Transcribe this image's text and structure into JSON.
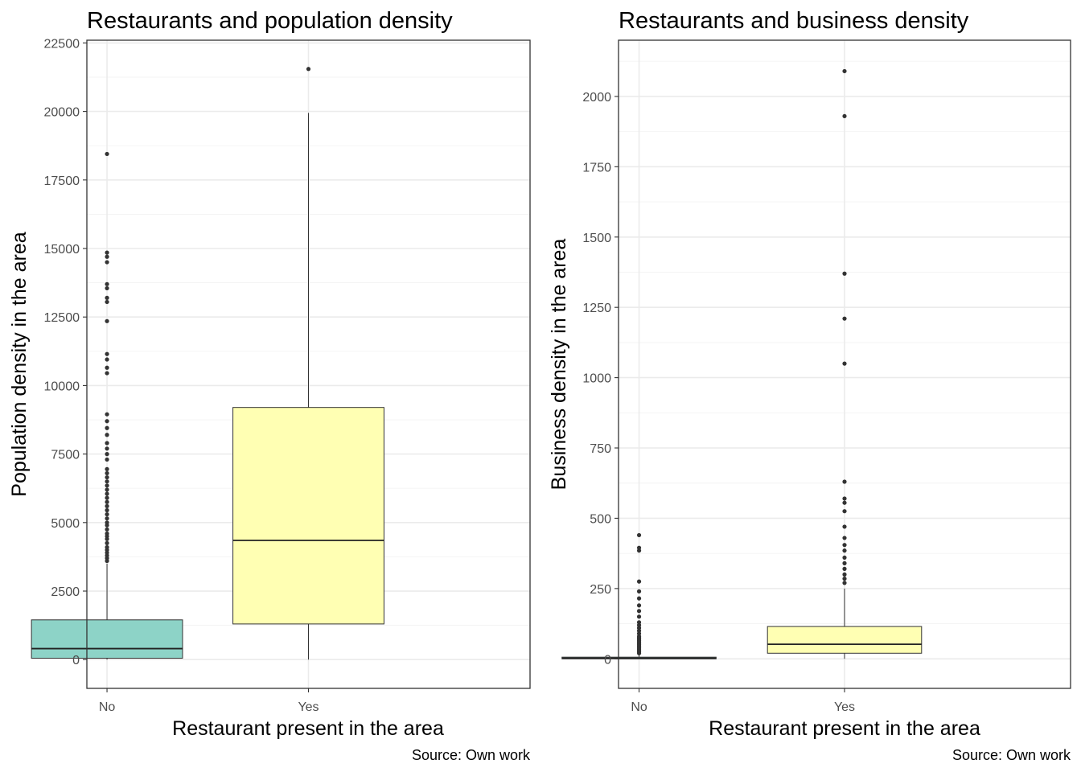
{
  "chart_data": [
    {
      "type": "box",
      "title": "Restaurants and population density",
      "xlabel": "Restaurant present in the area",
      "ylabel": "Population density in the area",
      "caption": "Source: Own work",
      "categories": [
        "No",
        "Yes"
      ],
      "ylim": [
        -1050,
        22600
      ],
      "yticks": [
        0,
        2500,
        5000,
        7500,
        10000,
        12500,
        15000,
        17500,
        20000,
        22500
      ],
      "ytick_labels": [
        "0",
        "2500",
        "5000",
        "7500",
        "10000",
        "12500",
        "15000",
        "17500",
        "20000",
        "22500"
      ],
      "boxes": [
        {
          "category": "No",
          "fill": "#8dd3c7",
          "whisker_low": 0,
          "q1": 50,
          "median": 400,
          "q3": 1450,
          "whisker_high": 3500,
          "outliers": [
            3600,
            3700,
            3800,
            3900,
            4000,
            4100,
            4250,
            4400,
            4500,
            4600,
            4750,
            4900,
            5000,
            5150,
            5300,
            5450,
            5600,
            5750,
            5900,
            6050,
            6200,
            6350,
            6500,
            6650,
            6800,
            6950,
            7300,
            7500,
            7700,
            7900,
            8200,
            8450,
            8700,
            8950,
            10450,
            10650,
            10950,
            11150,
            12350,
            13050,
            13200,
            13550,
            13700,
            14500,
            14700,
            14850,
            18450
          ]
        },
        {
          "category": "Yes",
          "fill": "#ffffb3",
          "whisker_low": 0,
          "q1": 1300,
          "median": 4350,
          "q3": 9200,
          "whisker_high": 19950,
          "outliers": [
            21550
          ]
        }
      ]
    },
    {
      "type": "box",
      "title": "Restaurants and business density",
      "xlabel": "Restaurant present in the area",
      "ylabel": "Business density in the area",
      "caption": "Source: Own work",
      "categories": [
        "No",
        "Yes"
      ],
      "ylim": [
        -105,
        2200
      ],
      "yticks": [
        0,
        250,
        500,
        750,
        1000,
        1250,
        1500,
        1750,
        2000
      ],
      "ytick_labels": [
        "0",
        "250",
        "500",
        "750",
        "1000",
        "1250",
        "1500",
        "1750",
        "2000"
      ],
      "boxes": [
        {
          "category": "No",
          "fill": "#8dd3c7",
          "whisker_low": 0,
          "q1": 0,
          "median": 2,
          "q3": 6,
          "whisker_high": 15,
          "outliers": [
            20,
            25,
            30,
            35,
            40,
            45,
            50,
            55,
            60,
            65,
            70,
            75,
            80,
            90,
            100,
            110,
            120,
            130,
            150,
            170,
            190,
            215,
            240,
            275,
            385,
            395,
            440
          ]
        },
        {
          "category": "Yes",
          "fill": "#ffffb3",
          "whisker_low": 0,
          "q1": 20,
          "median": 52,
          "q3": 115,
          "whisker_high": 250,
          "outliers": [
            270,
            285,
            300,
            320,
            340,
            360,
            385,
            405,
            430,
            470,
            525,
            555,
            570,
            630,
            1050,
            1210,
            1370,
            1930,
            2090
          ]
        }
      ]
    }
  ]
}
